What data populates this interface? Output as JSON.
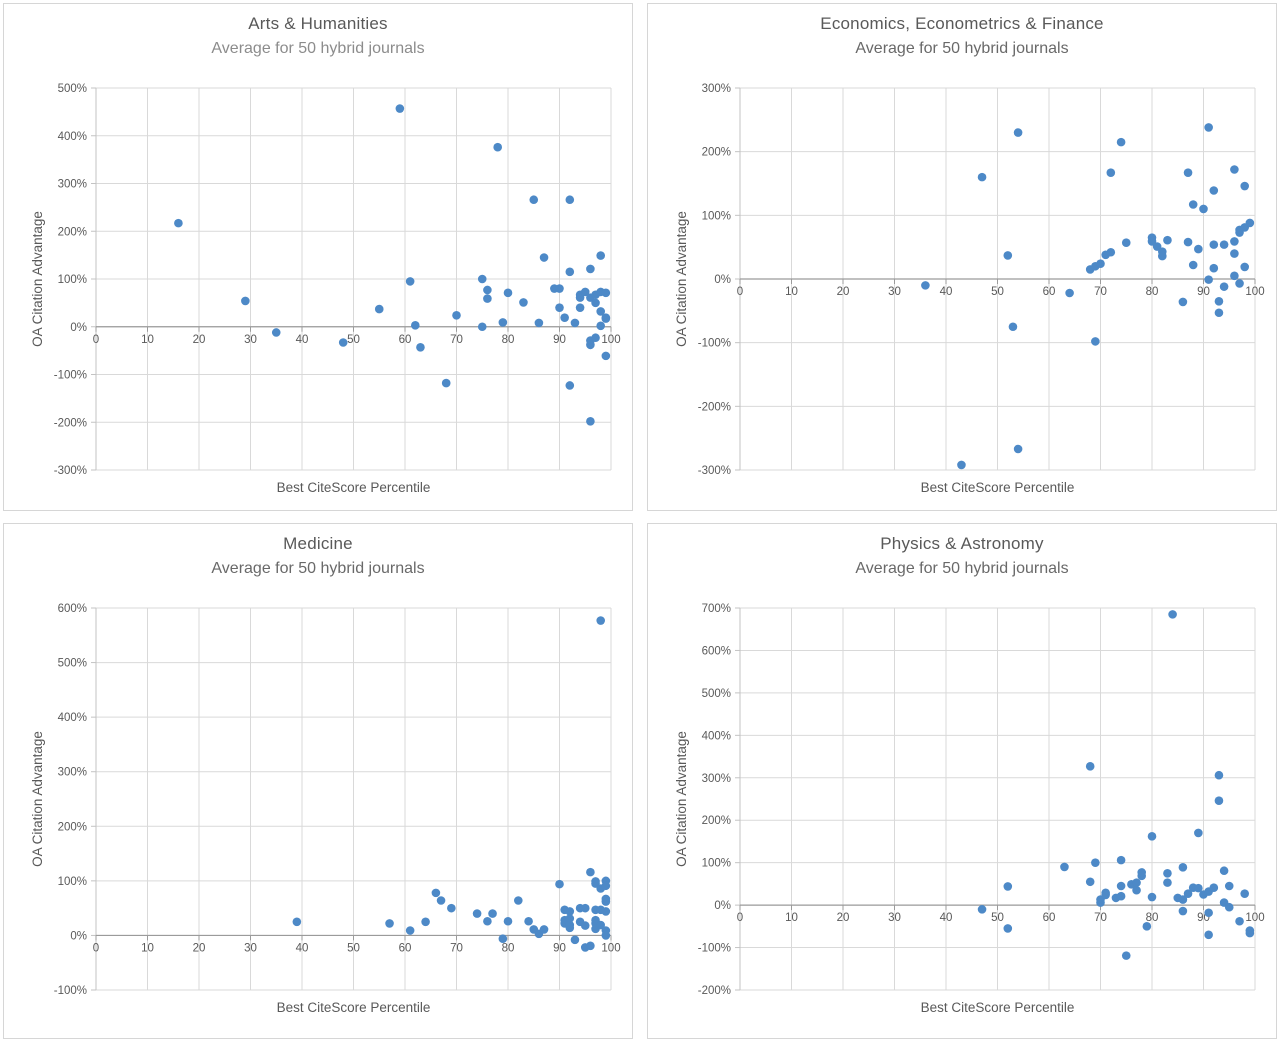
{
  "style": {
    "dot_color": "#4d89c7",
    "dot_radius": 4.3,
    "grid_color": "#d9d9d9",
    "y_axis_line_color": "#c3c3c3",
    "zero_line_color": "#9b9b9b",
    "tick_color": "#595959",
    "axis_title_color": "#595959",
    "title_color": "#595959"
  },
  "chart_data": [
    {
      "type": "scatter",
      "title": "Arts & Humanities",
      "subtitle": "Average for 50 hybrid journals",
      "subtitle_color": "#8c8c8c",
      "xlabel": "Best CiteScore Percentile",
      "ylabel": "OA Citation Advantage",
      "xlim": [
        0,
        100
      ],
      "xstep": 10,
      "ylim": [
        -300,
        500
      ],
      "ystep": 100,
      "grid": true,
      "legend": "none",
      "points": [
        [
          16,
          217
        ],
        [
          29,
          54
        ],
        [
          35,
          -12
        ],
        [
          48,
          -33
        ],
        [
          55,
          37
        ],
        [
          59,
          457
        ],
        [
          61,
          95
        ],
        [
          62,
          3
        ],
        [
          63,
          -43
        ],
        [
          68,
          -118
        ],
        [
          70,
          24
        ],
        [
          75,
          100
        ],
        [
          75,
          0
        ],
        [
          76,
          77
        ],
        [
          76,
          59
        ],
        [
          78,
          376
        ],
        [
          79,
          9
        ],
        [
          80,
          71
        ],
        [
          83,
          51
        ],
        [
          85,
          266
        ],
        [
          86,
          8
        ],
        [
          87,
          145
        ],
        [
          89,
          80
        ],
        [
          90,
          80
        ],
        [
          90,
          40
        ],
        [
          91,
          19
        ],
        [
          92,
          266
        ],
        [
          92,
          115
        ],
        [
          92,
          -123
        ],
        [
          93,
          8
        ],
        [
          94,
          67
        ],
        [
          94,
          61
        ],
        [
          94,
          40
        ],
        [
          95,
          73
        ],
        [
          96,
          121
        ],
        [
          96,
          61
        ],
        [
          96,
          -29
        ],
        [
          96,
          -38
        ],
        [
          96,
          -198
        ],
        [
          97,
          67
        ],
        [
          97,
          50
        ],
        [
          97,
          -23
        ],
        [
          98,
          149
        ],
        [
          98,
          73
        ],
        [
          98,
          32
        ],
        [
          98,
          2
        ],
        [
          99,
          71
        ],
        [
          99,
          19
        ],
        [
          99,
          17
        ],
        [
          99,
          -61
        ]
      ]
    },
    {
      "type": "scatter",
      "title": "Economics, Econometrics & Finance",
      "subtitle": "Average for 50 hybrid journals",
      "subtitle_color": "#696969",
      "xlabel": "Best CiteScore Percentile",
      "ylabel": "OA Citation Advantage",
      "xlim": [
        0,
        100
      ],
      "xstep": 10,
      "ylim": [
        -300,
        300
      ],
      "ystep": 100,
      "grid": true,
      "legend": "none",
      "points": [
        [
          36,
          -10
        ],
        [
          43,
          -292
        ],
        [
          47,
          160
        ],
        [
          52,
          37
        ],
        [
          53,
          -75
        ],
        [
          54,
          230
        ],
        [
          54,
          -267
        ],
        [
          64,
          -22
        ],
        [
          68,
          15
        ],
        [
          69,
          -98
        ],
        [
          69,
          20
        ],
        [
          70,
          24
        ],
        [
          71,
          38
        ],
        [
          72,
          42
        ],
        [
          72,
          167
        ],
        [
          74,
          215
        ],
        [
          75,
          57
        ],
        [
          80,
          65
        ],
        [
          80,
          59
        ],
        [
          81,
          51
        ],
        [
          82,
          43
        ],
        [
          82,
          36
        ],
        [
          83,
          61
        ],
        [
          86,
          -36
        ],
        [
          87,
          58
        ],
        [
          87,
          167
        ],
        [
          88,
          117
        ],
        [
          88,
          22
        ],
        [
          89,
          47
        ],
        [
          90,
          110
        ],
        [
          91,
          238
        ],
        [
          91,
          -1
        ],
        [
          92,
          139
        ],
        [
          92,
          54
        ],
        [
          92,
          17
        ],
        [
          93,
          -35
        ],
        [
          93,
          -53
        ],
        [
          94,
          54
        ],
        [
          94,
          -12
        ],
        [
          96,
          59
        ],
        [
          96,
          40
        ],
        [
          96,
          5
        ],
        [
          96,
          172
        ],
        [
          97,
          73
        ],
        [
          97,
          77
        ],
        [
          97,
          -7
        ],
        [
          98,
          81
        ],
        [
          98,
          146
        ],
        [
          98,
          19
        ],
        [
          99,
          88
        ]
      ]
    },
    {
      "type": "scatter",
      "title": "Medicine",
      "subtitle": "Average for 50 hybrid journals",
      "subtitle_color": "#696969",
      "xlabel": "Best CiteScore Percentile",
      "ylabel": "OA Citation Advantage",
      "xlim": [
        0,
        100
      ],
      "xstep": 10,
      "ylim": [
        -100,
        600
      ],
      "ystep": 100,
      "grid": true,
      "legend": "none",
      "points": [
        [
          39,
          25
        ],
        [
          57,
          22
        ],
        [
          61,
          9
        ],
        [
          64,
          25
        ],
        [
          66,
          78
        ],
        [
          67,
          64
        ],
        [
          69,
          50
        ],
        [
          74,
          40
        ],
        [
          76,
          26
        ],
        [
          77,
          40
        ],
        [
          79,
          -6
        ],
        [
          80,
          26
        ],
        [
          82,
          64
        ],
        [
          84,
          26
        ],
        [
          85,
          11
        ],
        [
          86,
          3
        ],
        [
          87,
          11
        ],
        [
          90,
          94
        ],
        [
          91,
          47
        ],
        [
          91,
          28
        ],
        [
          91,
          22
        ],
        [
          92,
          44
        ],
        [
          92,
          31
        ],
        [
          92,
          19
        ],
        [
          92,
          14
        ],
        [
          93,
          -8
        ],
        [
          94,
          50
        ],
        [
          94,
          25
        ],
        [
          95,
          50
        ],
        [
          95,
          18
        ],
        [
          95,
          -22
        ],
        [
          96,
          116
        ],
        [
          96,
          -19
        ],
        [
          97,
          99
        ],
        [
          97,
          95
        ],
        [
          97,
          47
        ],
        [
          97,
          28
        ],
        [
          97,
          22
        ],
        [
          97,
          12
        ],
        [
          98,
          86
        ],
        [
          98,
          47
        ],
        [
          98,
          19
        ],
        [
          98,
          577
        ],
        [
          99,
          100
        ],
        [
          99,
          91
        ],
        [
          99,
          67
        ],
        [
          99,
          62
        ],
        [
          99,
          44
        ],
        [
          99,
          9
        ],
        [
          99,
          0
        ]
      ]
    },
    {
      "type": "scatter",
      "title": "Physics & Astronomy",
      "subtitle": "Average for 50 hybrid journals",
      "subtitle_color": "#696969",
      "xlabel": "Best CiteScore Percentile",
      "ylabel": "OA Citation Advantage",
      "xlim": [
        0,
        100
      ],
      "xstep": 10,
      "ylim": [
        -200,
        700
      ],
      "ystep": 100,
      "grid": true,
      "legend": "none",
      "points": [
        [
          47,
          -10
        ],
        [
          52,
          44
        ],
        [
          52,
          -55
        ],
        [
          63,
          90
        ],
        [
          68,
          55
        ],
        [
          68,
          327
        ],
        [
          69,
          100
        ],
        [
          70,
          13
        ],
        [
          70,
          6
        ],
        [
          71,
          29
        ],
        [
          71,
          24
        ],
        [
          73,
          17
        ],
        [
          74,
          21
        ],
        [
          74,
          45
        ],
        [
          74,
          106
        ],
        [
          75,
          -119
        ],
        [
          76,
          49
        ],
        [
          77,
          53
        ],
        [
          77,
          35
        ],
        [
          78,
          69
        ],
        [
          78,
          77
        ],
        [
          79,
          -50
        ],
        [
          80,
          162
        ],
        [
          80,
          19
        ],
        [
          83,
          75
        ],
        [
          83,
          53
        ],
        [
          84,
          685
        ],
        [
          85,
          17
        ],
        [
          86,
          13
        ],
        [
          86,
          89
        ],
        [
          86,
          -14
        ],
        [
          87,
          27
        ],
        [
          88,
          41
        ],
        [
          89,
          170
        ],
        [
          89,
          40
        ],
        [
          90,
          25
        ],
        [
          91,
          32
        ],
        [
          91,
          -18
        ],
        [
          91,
          -70
        ],
        [
          92,
          41
        ],
        [
          93,
          306
        ],
        [
          93,
          246
        ],
        [
          94,
          81
        ],
        [
          94,
          6
        ],
        [
          95,
          45
        ],
        [
          95,
          -5
        ],
        [
          97,
          -38
        ],
        [
          98,
          27
        ],
        [
          99,
          -60
        ],
        [
          99,
          -66
        ]
      ]
    }
  ]
}
